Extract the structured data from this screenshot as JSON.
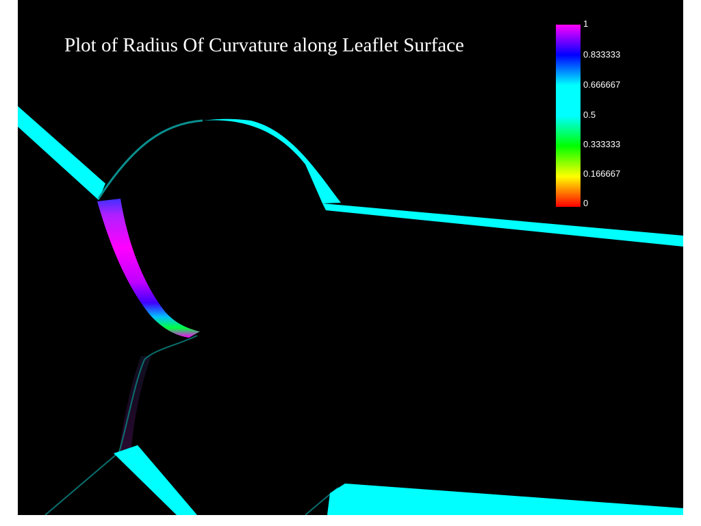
{
  "title": "Plot of Radius Of Curvature along Leaflet Surface",
  "colorbar": {
    "min": 0,
    "max": 1,
    "ticks": [
      "1",
      "0.833333",
      "0.666667",
      "0.5",
      "0.333333",
      "0.166667",
      "0"
    ],
    "colors": [
      "#ff00ff",
      "#0000ff",
      "#00ffff",
      "#00ff00",
      "#ffff00",
      "#ff0000"
    ]
  },
  "colors": {
    "background": "#000000",
    "wall": "#00ffff",
    "wall_edge": "#0a8f8f",
    "leaflet_top": "#a020f0",
    "leaflet_mid": "#ff00ff",
    "leaflet_tip": "#00ff00"
  }
}
